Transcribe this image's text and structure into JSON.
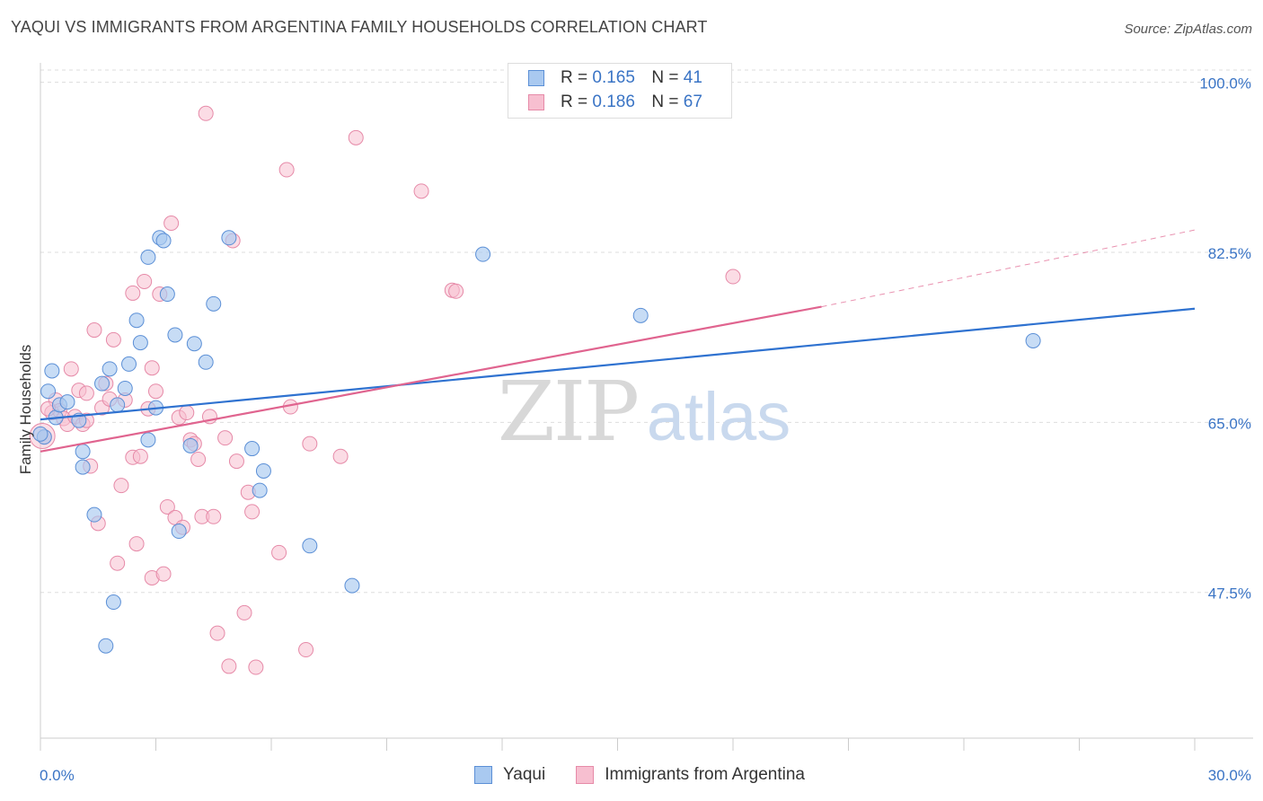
{
  "title": "YAQUI VS IMMIGRANTS FROM ARGENTINA FAMILY HOUSEHOLDS CORRELATION CHART",
  "source": "Source: ZipAtlas.com",
  "watermark": {
    "zip": "ZIP",
    "atlas": "atlas"
  },
  "legend": {
    "rows": [
      {
        "r_label": "R =",
        "r_value": "0.165",
        "n_label": "N =",
        "n_value": "41"
      },
      {
        "r_label": "R =",
        "r_value": "0.186",
        "n_label": "N =",
        "n_value": "67"
      }
    ]
  },
  "bottom_legend": [
    "Yaqui",
    "Immigrants from Argentina"
  ],
  "colors": {
    "yaqui_fill": "#a9c9f0",
    "yaqui_stroke": "#5b8fd6",
    "yaqui_line": "#2f72d0",
    "arg_fill": "#f7bfd0",
    "arg_stroke": "#e68aa8",
    "arg_line": "#e0648f",
    "axis_value_text": "#3a74c5",
    "grid": "#dddddd"
  },
  "chart_data": {
    "type": "scatter",
    "xlabel": "",
    "ylabel": "Family Households",
    "xlim": [
      0,
      30
    ],
    "ylim": [
      32.5,
      102
    ],
    "x_tick_labels": [
      "0.0%",
      "30.0%"
    ],
    "y_ticks": [
      47.5,
      65.0,
      82.5,
      100.0
    ],
    "y_tick_labels": [
      "47.5%",
      "65.0%",
      "82.5%",
      "100.0%"
    ],
    "grid": true,
    "legend_position": "top-center",
    "series": [
      {
        "name": "Yaqui",
        "points": [
          [
            0.1,
            63.5
          ],
          [
            0.2,
            68.2
          ],
          [
            0.3,
            70.3
          ],
          [
            0.4,
            65.5
          ],
          [
            0.5,
            66.8
          ],
          [
            0.7,
            67.1
          ],
          [
            1.0,
            65.2
          ],
          [
            1.1,
            62.0
          ],
          [
            1.1,
            60.4
          ],
          [
            1.4,
            55.5
          ],
          [
            1.6,
            69.0
          ],
          [
            1.7,
            42.0
          ],
          [
            1.8,
            70.5
          ],
          [
            1.9,
            46.5
          ],
          [
            2.0,
            66.8
          ],
          [
            2.2,
            68.5
          ],
          [
            2.3,
            71.0
          ],
          [
            2.5,
            75.5
          ],
          [
            2.6,
            73.2
          ],
          [
            2.8,
            82.0
          ],
          [
            2.8,
            63.2
          ],
          [
            3.0,
            66.5
          ],
          [
            3.1,
            84.0
          ],
          [
            3.2,
            83.7
          ],
          [
            3.3,
            78.2
          ],
          [
            3.5,
            74.0
          ],
          [
            3.6,
            53.8
          ],
          [
            3.9,
            62.6
          ],
          [
            4.0,
            73.1
          ],
          [
            4.3,
            71.2
          ],
          [
            4.5,
            77.2
          ],
          [
            4.9,
            84.0
          ],
          [
            5.5,
            62.3
          ],
          [
            5.7,
            58.0
          ],
          [
            5.8,
            60.0
          ],
          [
            7.0,
            52.3
          ],
          [
            8.1,
            48.2
          ],
          [
            11.5,
            82.3
          ],
          [
            15.6,
            76.0
          ],
          [
            25.8,
            73.4
          ],
          [
            0.0,
            63.8
          ]
        ]
      },
      {
        "name": "Immigrants from Argentina",
        "points": [
          [
            0.1,
            63.5
          ],
          [
            0.3,
            66.0
          ],
          [
            0.4,
            67.3
          ],
          [
            0.5,
            66.2
          ],
          [
            0.6,
            65.4
          ],
          [
            0.7,
            64.8
          ],
          [
            0.8,
            70.5
          ],
          [
            0.9,
            65.6
          ],
          [
            1.0,
            68.3
          ],
          [
            1.1,
            64.8
          ],
          [
            1.2,
            65.2
          ],
          [
            1.3,
            60.5
          ],
          [
            1.4,
            74.5
          ],
          [
            1.5,
            54.6
          ],
          [
            1.6,
            66.5
          ],
          [
            1.7,
            69.0
          ],
          [
            1.8,
            67.4
          ],
          [
            1.9,
            73.5
          ],
          [
            2.0,
            50.5
          ],
          [
            2.1,
            58.5
          ],
          [
            2.2,
            67.3
          ],
          [
            2.4,
            78.3
          ],
          [
            2.4,
            61.4
          ],
          [
            2.5,
            52.5
          ],
          [
            2.6,
            61.5
          ],
          [
            2.7,
            79.5
          ],
          [
            2.8,
            66.4
          ],
          [
            2.9,
            70.6
          ],
          [
            2.9,
            49.0
          ],
          [
            3.0,
            68.2
          ],
          [
            3.1,
            78.2
          ],
          [
            3.2,
            49.4
          ],
          [
            3.3,
            56.3
          ],
          [
            3.4,
            85.5
          ],
          [
            3.5,
            55.2
          ],
          [
            3.6,
            65.5
          ],
          [
            3.7,
            54.2
          ],
          [
            3.8,
            66.0
          ],
          [
            3.9,
            63.2
          ],
          [
            4.0,
            62.8
          ],
          [
            4.1,
            61.2
          ],
          [
            4.2,
            55.3
          ],
          [
            4.3,
            96.8
          ],
          [
            4.4,
            65.6
          ],
          [
            4.5,
            55.3
          ],
          [
            4.6,
            43.3
          ],
          [
            4.8,
            63.4
          ],
          [
            4.9,
            39.9
          ],
          [
            5.0,
            83.7
          ],
          [
            5.1,
            61.0
          ],
          [
            5.3,
            45.4
          ],
          [
            5.4,
            57.8
          ],
          [
            5.5,
            55.8
          ],
          [
            5.6,
            39.8
          ],
          [
            6.2,
            51.6
          ],
          [
            6.4,
            91.0
          ],
          [
            6.5,
            66.6
          ],
          [
            6.9,
            41.6
          ],
          [
            7.0,
            62.8
          ],
          [
            7.8,
            61.5
          ],
          [
            8.2,
            94.3
          ],
          [
            9.9,
            88.8
          ],
          [
            10.7,
            78.6
          ],
          [
            10.8,
            78.5
          ],
          [
            18.0,
            80.0
          ],
          [
            0.2,
            66.4
          ],
          [
            1.2,
            68.0
          ]
        ]
      }
    ],
    "trend_lines": [
      {
        "name": "Yaqui",
        "x": [
          0,
          30
        ],
        "y": [
          65.3,
          76.7
        ]
      },
      {
        "name": "Immigrants from Argentina",
        "x": [
          0,
          20.3
        ],
        "y": [
          62.0,
          76.9
        ],
        "dashed_extension_x": [
          20.3,
          30
        ],
        "dashed_extension_y": [
          76.9,
          84.8
        ]
      }
    ]
  }
}
